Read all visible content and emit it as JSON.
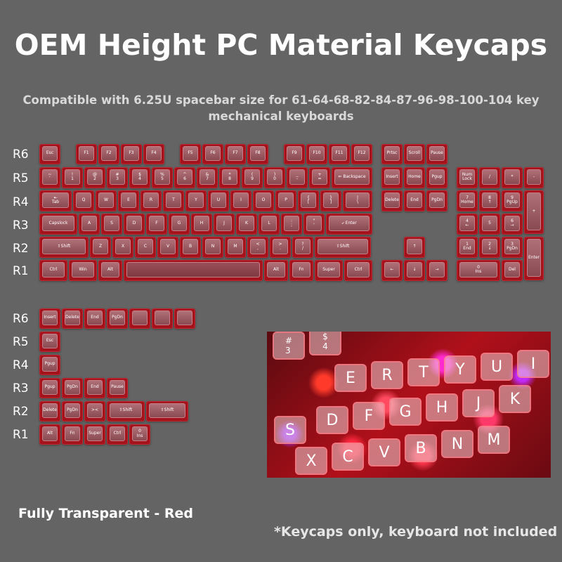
{
  "title": "OEM Height PC Material Keycaps",
  "subtitle": "Compatible with 6.25U spacebar size for 61-64-68-82-84-87-96-98-100-104 key mechanical keyboards",
  "colors": {
    "background": "#646464",
    "keycap_red": "#a4121c",
    "keycap_top": "#b07078"
  },
  "row_labels_top": [
    "R6",
    "R5",
    "R4",
    "R3",
    "R2",
    "R1"
  ],
  "row_labels_bottom": [
    "R6",
    "R5",
    "R4",
    "R3",
    "R2",
    "R1"
  ],
  "main_keys": {
    "r6": [
      "Esc",
      "F1",
      "F2",
      "F3",
      "F4",
      "F5",
      "F6",
      "F7",
      "F8",
      "F9",
      "F10",
      "F11",
      "F12",
      "Prtsc",
      "Scroll",
      "Pause"
    ],
    "r5": [
      "~\n`",
      "!\n1",
      "@\n2",
      "#\n3",
      "$\n4",
      "%\n5",
      "^\n6",
      "&\n7",
      "*\n8",
      "(\n9",
      ")\n0",
      "_\n-",
      "+\n=",
      "⇐ Backspace",
      "Insert",
      "Home",
      "Pgup",
      "Num\nLock",
      "/",
      "*",
      "-"
    ],
    "r4": [
      "⇤\nTab",
      "Q",
      "W",
      "E",
      "R",
      "T",
      "Y",
      "U",
      "I",
      "O",
      "P",
      "{\n[",
      "}\n]",
      "|\n\\",
      "Delete",
      "End",
      "PgDn",
      "7\nHome",
      "8\n↑",
      "9\nPgUp",
      "+"
    ],
    "r3": [
      "Capslock",
      "A",
      "S",
      "D",
      "F",
      "G",
      "H",
      "J",
      "K",
      "L",
      ":\n;",
      "\"\n'",
      "⤶ Enter",
      "4\n←",
      "5",
      "6\n→"
    ],
    "r2": [
      "⇧Shift",
      "Z",
      "X",
      "C",
      "V",
      "B",
      "N",
      "M",
      "<\n,",
      ">\n.",
      "?\n/",
      "⇧Shift",
      "↑",
      "1\nEnd",
      "2\n↓",
      "3\nPgDn",
      "Enter"
    ],
    "r1": [
      "Ctrl",
      "Win",
      "Alt",
      "",
      "Alt",
      "Fn",
      "Super",
      "Ctrl",
      "←",
      "↓",
      "→",
      "0\nIns",
      "Del"
    ]
  },
  "extra_keys": {
    "r6": [
      "Insert",
      "Delete",
      "End",
      "PgDn",
      "",
      "",
      "",
      ""
    ],
    "r5": [
      "Esc"
    ],
    "r4": [
      "Pgup"
    ],
    "r3": [
      "Pgup",
      "PgDn",
      "End",
      "Pause"
    ],
    "r2": [
      "Delete",
      "PgDn",
      "><",
      "⇧Shift",
      "⇧Shift"
    ],
    "r1": [
      "Alt",
      "Fn",
      "Super",
      "Ctrl",
      "0\nIns"
    ]
  },
  "photo_keys": [
    "#\n3",
    "$\n4",
    "E",
    "R",
    "T",
    "Y",
    "U",
    "I",
    "D",
    "F",
    "G",
    "H",
    "J",
    "K",
    "S",
    "X",
    "C",
    "V",
    "B",
    "N",
    "M"
  ],
  "footer_left": "Fully Transparent - Red",
  "footer_right": "*Keycaps only, keyboard not included"
}
